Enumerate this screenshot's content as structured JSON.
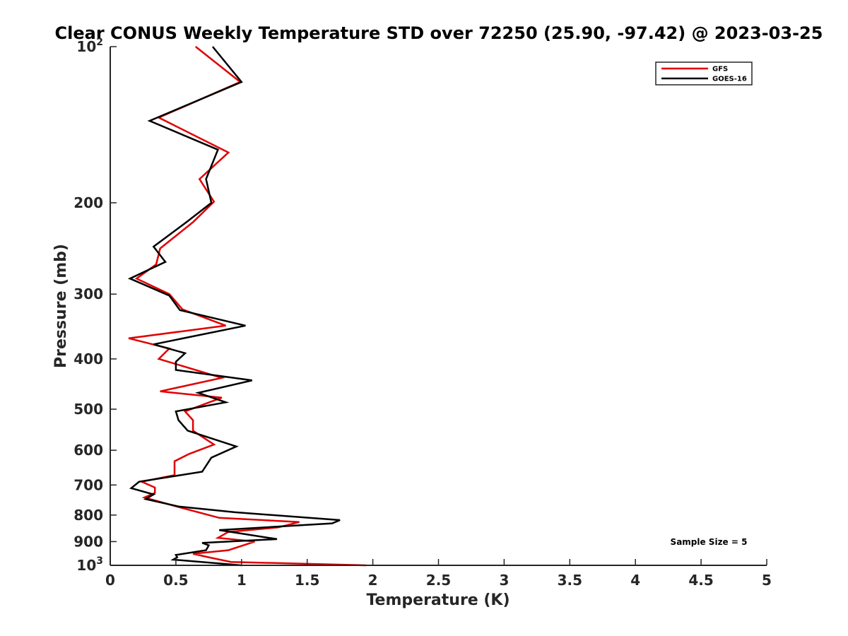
{
  "chart_data": {
    "type": "line",
    "title": "Clear CONUS Weekly Temperature STD over 72250 (25.90, -97.42) @ 2023-03-25",
    "xlabel": "Temperature (K)",
    "ylabel": "Pressure (mb)",
    "xlim": [
      0,
      5
    ],
    "ylim": [
      100,
      1000
    ],
    "y_scale": "log",
    "y_direction": "reversed",
    "x_ticks": [
      0,
      0.5,
      1,
      1.5,
      2,
      2.5,
      3,
      3.5,
      4,
      4.5,
      5
    ],
    "x_tick_labels": [
      "0",
      "0.5",
      "1",
      "1.5",
      "2",
      "2.5",
      "3",
      "3.5",
      "4",
      "4.5",
      "5"
    ],
    "y_ticks": [
      100,
      200,
      300,
      400,
      500,
      600,
      700,
      800,
      900,
      1000
    ],
    "y_tick_labels": [
      {
        "base": "10",
        "exp": "2"
      },
      {
        "base": "200"
      },
      {
        "base": "300"
      },
      {
        "base": "400"
      },
      {
        "base": "500"
      },
      {
        "base": "600"
      },
      {
        "base": "700"
      },
      {
        "base": "800"
      },
      {
        "base": "900"
      },
      {
        "base": "10",
        "exp": "3"
      }
    ],
    "grid": false,
    "legend_position": "top-right",
    "annotation": "Sample Size = 5",
    "series": [
      {
        "name": "GFS",
        "color": "#e00000",
        "points": [
          [
            0.65,
            100
          ],
          [
            0.99,
            117
          ],
          [
            0.37,
            137
          ],
          [
            0.9,
            160
          ],
          [
            0.68,
            180
          ],
          [
            0.79,
            199
          ],
          [
            0.63,
            218
          ],
          [
            0.38,
            245
          ],
          [
            0.35,
            263
          ],
          [
            0.2,
            280
          ],
          [
            0.45,
            300
          ],
          [
            0.55,
            321
          ],
          [
            0.88,
            345
          ],
          [
            0.14,
            365
          ],
          [
            0.45,
            382
          ],
          [
            0.37,
            400
          ],
          [
            0.85,
            435
          ],
          [
            0.38,
            462
          ],
          [
            0.85,
            475
          ],
          [
            0.57,
            505
          ],
          [
            0.63,
            525
          ],
          [
            0.63,
            550
          ],
          [
            0.79,
            585
          ],
          [
            0.6,
            610
          ],
          [
            0.49,
            630
          ],
          [
            0.49,
            670
          ],
          [
            0.24,
            690
          ],
          [
            0.34,
            708
          ],
          [
            0.34,
            725
          ],
          [
            0.26,
            740
          ],
          [
            0.49,
            768
          ],
          [
            0.83,
            810
          ],
          [
            1.44,
            825
          ],
          [
            1.28,
            845
          ],
          [
            0.9,
            862
          ],
          [
            0.82,
            885
          ],
          [
            1.1,
            900
          ],
          [
            0.9,
            935
          ],
          [
            0.63,
            950
          ],
          [
            0.75,
            965
          ],
          [
            0.92,
            985
          ],
          [
            1.95,
            1000
          ]
        ]
      },
      {
        "name": "GOES-16",
        "color": "#000000",
        "points": [
          [
            0.78,
            100
          ],
          [
            1.0,
            117
          ],
          [
            0.3,
            139
          ],
          [
            0.82,
            158
          ],
          [
            0.73,
            180
          ],
          [
            0.77,
            200
          ],
          [
            0.58,
            218
          ],
          [
            0.33,
            243
          ],
          [
            0.42,
            260
          ],
          [
            0.15,
            280
          ],
          [
            0.45,
            302
          ],
          [
            0.53,
            322
          ],
          [
            1.03,
            345
          ],
          [
            0.33,
            375
          ],
          [
            0.57,
            390
          ],
          [
            0.5,
            405
          ],
          [
            0.5,
            420
          ],
          [
            1.08,
            440
          ],
          [
            0.67,
            465
          ],
          [
            0.88,
            485
          ],
          [
            0.5,
            505
          ],
          [
            0.52,
            525
          ],
          [
            0.59,
            550
          ],
          [
            0.96,
            590
          ],
          [
            0.77,
            620
          ],
          [
            0.7,
            660
          ],
          [
            0.22,
            690
          ],
          [
            0.16,
            710
          ],
          [
            0.33,
            730
          ],
          [
            0.27,
            745
          ],
          [
            0.52,
            770
          ],
          [
            0.95,
            790
          ],
          [
            1.75,
            818
          ],
          [
            1.69,
            830
          ],
          [
            0.83,
            855
          ],
          [
            1.27,
            890
          ],
          [
            0.7,
            905
          ],
          [
            0.75,
            915
          ],
          [
            0.73,
            935
          ],
          [
            0.5,
            955
          ],
          [
            0.51,
            965
          ],
          [
            0.48,
            975
          ],
          [
            1.0,
            1000
          ]
        ]
      }
    ]
  }
}
